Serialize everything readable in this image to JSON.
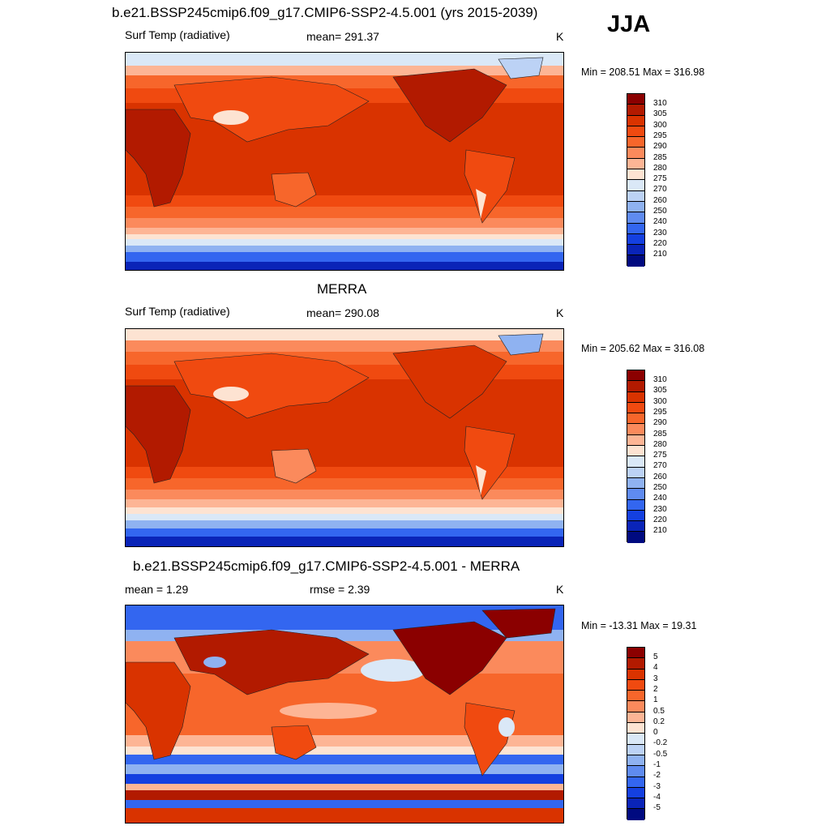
{
  "season": "JJA",
  "panels": [
    {
      "title": "b.e21.BSSP245cmip6.f09_g17.CMIP6-SSP2-4.5.001 (yrs 2015-2039)",
      "left_label": "Surf Temp (radiative)",
      "center_label": "mean= 291.37",
      "units": "K",
      "minmax": "Min = 208.51 Max = 316.98"
    },
    {
      "title": "MERRA",
      "left_label": "Surf Temp (radiative)",
      "center_label": "mean= 290.08",
      "units": "K",
      "minmax": "Min = 205.62 Max = 316.08"
    },
    {
      "title": "b.e21.BSSP245cmip6.f09_g17.CMIP6-SSP2-4.5.001 - MERRA",
      "left_label": "mean =   1.29",
      "center_label": "rmse =   2.39",
      "units": "K",
      "minmax": "Min = -13.31 Max =  19.31"
    }
  ],
  "colorbars": {
    "temperature": {
      "labels": [
        "310",
        "305",
        "300",
        "295",
        "290",
        "285",
        "280",
        "275",
        "270",
        "260",
        "250",
        "240",
        "230",
        "220",
        "210"
      ],
      "colors": [
        "#8b0000",
        "#b21a00",
        "#d93300",
        "#f04a10",
        "#f7662b",
        "#fb8a5c",
        "#fdb595",
        "#fde3d2",
        "#dae8f7",
        "#bcd2f5",
        "#8fb2f1",
        "#5f8bf0",
        "#3366f0",
        "#1440e0",
        "#0a24b8",
        "#000a80"
      ]
    },
    "difference": {
      "labels": [
        "5",
        "4",
        "3",
        "2",
        "1",
        "0.5",
        "0.2",
        "0",
        "-0.2",
        "-0.5",
        "-1",
        "-2",
        "-3",
        "-4",
        "-5"
      ],
      "colors": [
        "#8b0000",
        "#b21a00",
        "#d93300",
        "#f04a10",
        "#f7662b",
        "#fb8a5c",
        "#fdb595",
        "#fde3d2",
        "#dae8f7",
        "#bcd2f5",
        "#8fb2f1",
        "#5f8bf0",
        "#3366f0",
        "#1440e0",
        "#0a24b8",
        "#000a80"
      ]
    }
  }
}
